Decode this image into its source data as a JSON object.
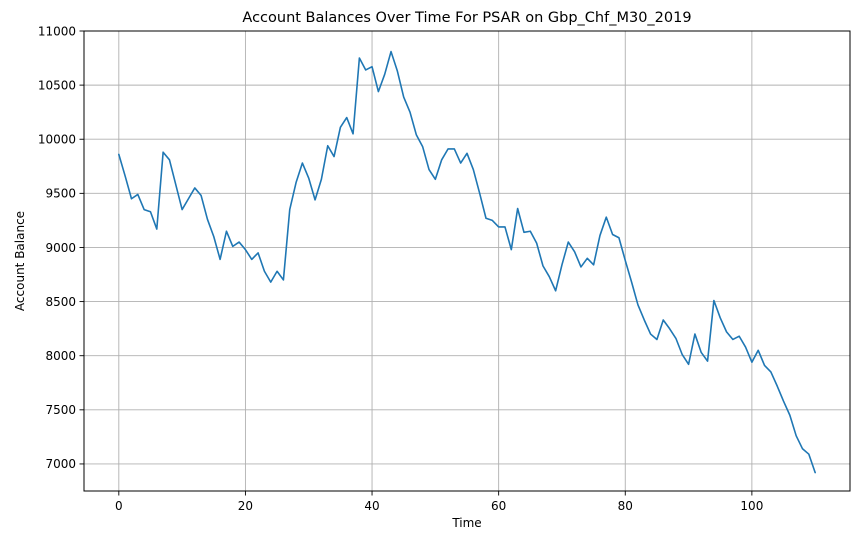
{
  "chart_data": {
    "type": "line",
    "title": "Account Balances Over Time For PSAR on Gbp_Chf_M30_2019",
    "xlabel": "Time",
    "ylabel": "Account Balance",
    "xlim": [
      -5.5,
      115.5
    ],
    "ylim": [
      6750,
      11000
    ],
    "xticks": [
      0,
      20,
      40,
      60,
      80,
      100
    ],
    "yticks": [
      7000,
      7500,
      8000,
      8500,
      9000,
      9500,
      10000,
      10500,
      11000
    ],
    "grid": true,
    "line_color": "#1f77b4",
    "series": [
      {
        "values": [
          9860,
          9660,
          9450,
          9490,
          9350,
          9330,
          9170,
          9880,
          9810,
          9580,
          9350,
          9450,
          9550,
          9480,
          9260,
          9100,
          8890,
          9150,
          9010,
          9050,
          8980,
          8890,
          8950,
          8780,
          8680,
          8780,
          8700,
          9350,
          9600,
          9780,
          9640,
          9440,
          9630,
          9940,
          9840,
          10110,
          10200,
          10050,
          10750,
          10640,
          10670,
          10440,
          10600,
          10810,
          10630,
          10390,
          10250,
          10040,
          9930,
          9720,
          9630,
          9810,
          9910,
          9910,
          9780,
          9870,
          9720,
          9500,
          9270,
          9250,
          9190,
          9190,
          8980,
          9360,
          9140,
          9150,
          9040,
          8830,
          8730,
          8600,
          8840,
          9050,
          8960,
          8820,
          8900,
          8840,
          9110,
          9280,
          9120,
          9090,
          8880,
          8680,
          8470,
          8330,
          8200,
          8150,
          8330,
          8250,
          8160,
          8010,
          7920,
          8200,
          8030,
          7950,
          8510,
          8350,
          8220,
          8150,
          8180,
          8080,
          7940,
          8050,
          7910,
          7850,
          7720,
          7580,
          7450,
          7260,
          7140,
          7090,
          6920
        ]
      }
    ]
  }
}
